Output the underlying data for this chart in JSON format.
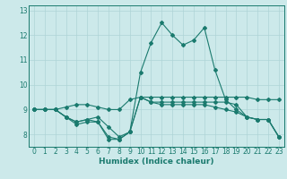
{
  "x": [
    0,
    1,
    2,
    3,
    4,
    5,
    6,
    7,
    8,
    9,
    10,
    11,
    12,
    13,
    14,
    15,
    16,
    17,
    18,
    19,
    20,
    21,
    22,
    23
  ],
  "lines": [
    [
      9.0,
      9.0,
      9.0,
      9.1,
      9.2,
      9.2,
      9.1,
      9.0,
      9.0,
      9.4,
      9.5,
      9.5,
      9.5,
      9.5,
      9.5,
      9.5,
      9.5,
      9.5,
      9.5,
      9.5,
      9.5,
      9.4,
      9.4,
      9.4
    ],
    [
      9.0,
      9.0,
      9.0,
      8.7,
      8.5,
      8.6,
      8.5,
      7.8,
      7.8,
      8.1,
      10.5,
      11.7,
      12.5,
      12.0,
      11.6,
      11.8,
      12.3,
      10.6,
      9.4,
      9.0,
      8.7,
      8.6,
      8.6,
      7.9
    ],
    [
      9.0,
      9.0,
      9.0,
      8.7,
      8.5,
      8.6,
      8.7,
      8.3,
      7.9,
      8.1,
      9.5,
      9.3,
      9.3,
      9.3,
      9.3,
      9.3,
      9.3,
      9.3,
      9.3,
      9.2,
      8.7,
      8.6,
      8.6,
      7.9
    ],
    [
      9.0,
      9.0,
      9.0,
      8.7,
      8.4,
      8.5,
      8.5,
      7.9,
      7.8,
      8.1,
      9.5,
      9.3,
      9.2,
      9.2,
      9.2,
      9.2,
      9.2,
      9.1,
      9.0,
      8.9,
      8.7,
      8.6,
      8.6,
      7.9
    ]
  ],
  "line_color": "#1a7a6e",
  "bg_color": "#cce9ea",
  "grid_color": "#aed4d6",
  "xlabel": "Humidex (Indice chaleur)",
  "xlim": [
    -0.5,
    23.5
  ],
  "ylim": [
    7.5,
    13.2
  ],
  "yticks": [
    8,
    9,
    10,
    11,
    12,
    13
  ],
  "xticks": [
    0,
    1,
    2,
    3,
    4,
    5,
    6,
    7,
    8,
    9,
    10,
    11,
    12,
    13,
    14,
    15,
    16,
    17,
    18,
    19,
    20,
    21,
    22,
    23
  ],
  "markersize": 2.0,
  "linewidth": 0.8,
  "xlabel_fontsize": 6.5,
  "tick_fontsize": 5.5
}
